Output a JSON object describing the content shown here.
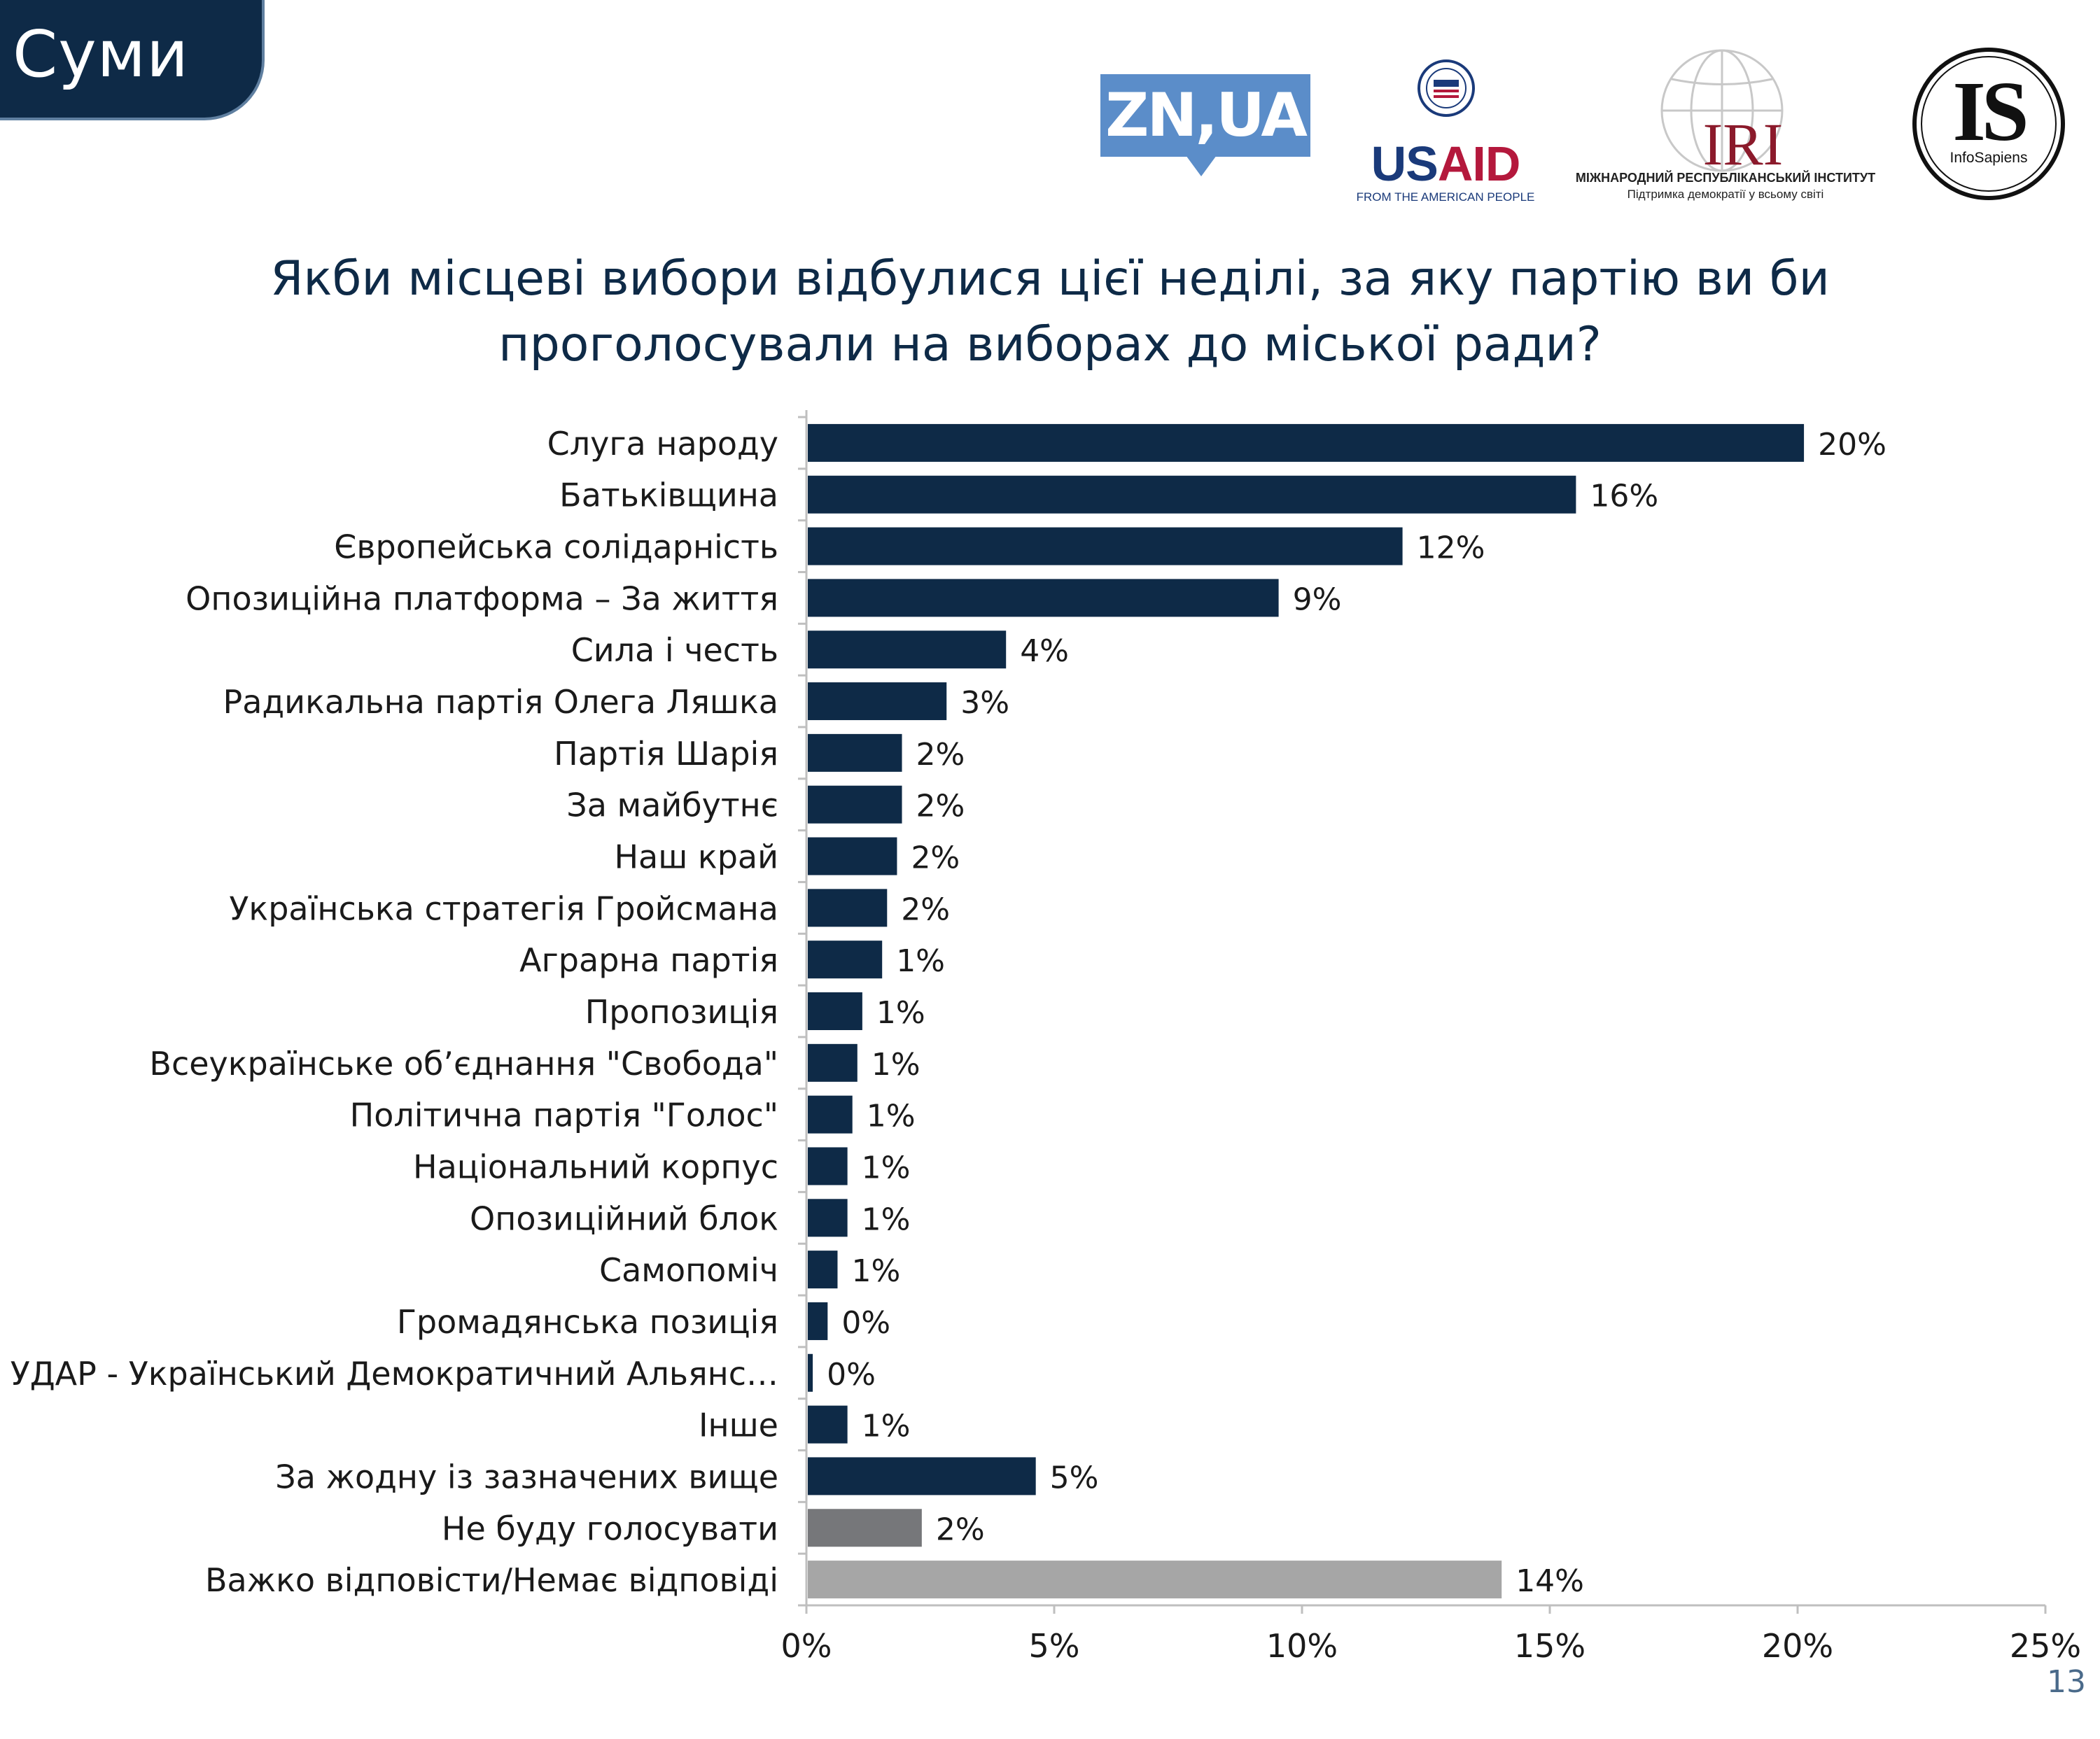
{
  "header": {
    "city": "Суми",
    "logos": {
      "zn": "ZN,UA",
      "usaid_us": "US",
      "usaid_aid": "AID",
      "usaid_tag": "FROM THE AMERICAN PEOPLE",
      "iri": "IRI",
      "iri_line1": "МІЖНАРОДНИЙ РЕСПУБЛІКАНСЬКИЙ ІНСТИТУТ",
      "iri_line2": "Підтримка демократії у всьому світі",
      "is": "IS",
      "is_sub": "InfoSapiens"
    }
  },
  "colors": {
    "title": "#0e2a47",
    "bar_main": "#0e2a47",
    "bar_dont_vote": "#76777a",
    "bar_hard_to_say": "#a6a6a6",
    "axis": "#bfbfbf"
  },
  "chart_data": {
    "type": "bar",
    "orientation": "horizontal",
    "title_lines": [
      "Якби місцеві вибори відбулися цієї неділі, за яку партію ви би",
      "проголосували на виборах до міської ради?"
    ],
    "categories": [
      "Слуга народу",
      "Батьківщина",
      "Європейська солідарність",
      "Опозиційна платформа – За життя",
      "Сила і честь",
      "Радикальна партія Олега Ляшка",
      "Партія Шарія",
      "За майбутнє",
      "Наш край",
      "Українська стратегія Гройсмана",
      "Аграрна партія",
      "Пропозиція",
      "Всеукраїнське об’єднання \"Свобода\"",
      "Політична партія \"Голос\"",
      "Національний корпус",
      "Опозиційний блок",
      "Самопоміч",
      "Громадянська позиція",
      "УДАР - Український Демократичний Альянс…",
      "Інше",
      "За жодну із зазначених вище",
      "Не буду голосувати",
      "Важко відповісти/Немає відповіді"
    ],
    "values": [
      20.1,
      15.5,
      12.0,
      9.5,
      4.0,
      2.8,
      1.9,
      1.9,
      1.8,
      1.6,
      1.5,
      1.1,
      1.0,
      0.9,
      0.8,
      0.8,
      0.6,
      0.4,
      0.1,
      0.8,
      4.6,
      2.3,
      14.0
    ],
    "data_labels": [
      "20%",
      "16%",
      "12%",
      "9%",
      "4%",
      "3%",
      "2%",
      "2%",
      "2%",
      "2%",
      "1%",
      "1%",
      "1%",
      "1%",
      "1%",
      "1%",
      "1%",
      "0%",
      "0%",
      "1%",
      "5%",
      "2%",
      "14%"
    ],
    "bar_color_keys": [
      "main",
      "main",
      "main",
      "main",
      "main",
      "main",
      "main",
      "main",
      "main",
      "main",
      "main",
      "main",
      "main",
      "main",
      "main",
      "main",
      "main",
      "main",
      "main",
      "main",
      "main",
      "dont_vote",
      "hard_to_say"
    ],
    "xlim": [
      0,
      25
    ],
    "x_ticks": [
      "0%",
      "5%",
      "10%",
      "15%",
      "20%",
      "25%"
    ],
    "xlabel": "",
    "ylabel": "",
    "grid": false,
    "legend": "none"
  },
  "footer": {
    "page_number": "13"
  }
}
